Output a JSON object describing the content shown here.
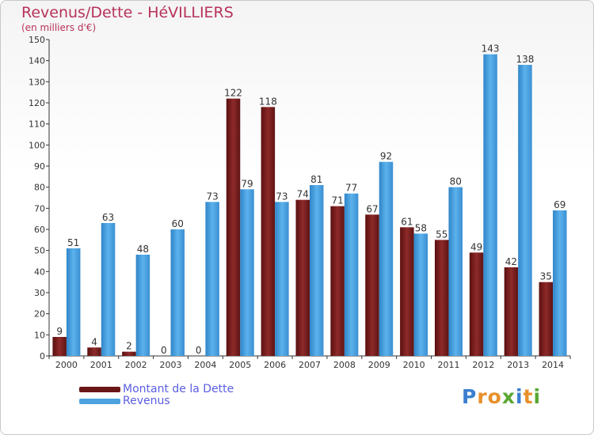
{
  "title": "Revenus/Dette - HéVILLIERS",
  "subtitle": "(en milliers d'€)",
  "logo_text": "Proxiti",
  "colors": {
    "debt": "#7a1f1f",
    "revenue": "#4da3e0",
    "title": "#b7325a",
    "legend_text": "#5a5ee0"
  },
  "chart_data": {
    "type": "bar",
    "title": "Revenus/Dette - HéVILLIERS",
    "subtitle": "(en milliers d'€)",
    "categories": [
      "2000",
      "2001",
      "2002",
      "2003",
      "2004",
      "2005",
      "2006",
      "2007",
      "2008",
      "2009",
      "2010",
      "2011",
      "2012",
      "2013",
      "2014"
    ],
    "series": [
      {
        "name": "Montant de la Dette",
        "color": "#7a1f1f",
        "values": [
          9,
          4,
          2,
          0,
          0,
          122,
          118,
          74,
          71,
          67,
          61,
          55,
          49,
          42,
          35
        ]
      },
      {
        "name": "Revenus",
        "color": "#4da3e0",
        "values": [
          51,
          63,
          48,
          60,
          73,
          79,
          73,
          81,
          77,
          92,
          58,
          80,
          143,
          138,
          69
        ]
      }
    ],
    "ylim": [
      0,
      150
    ],
    "yticks": [
      0,
      10,
      20,
      30,
      40,
      50,
      60,
      70,
      80,
      90,
      100,
      110,
      120,
      130,
      140,
      150
    ],
    "grid": false,
    "legend": "bottom-left",
    "data_labels": true
  }
}
